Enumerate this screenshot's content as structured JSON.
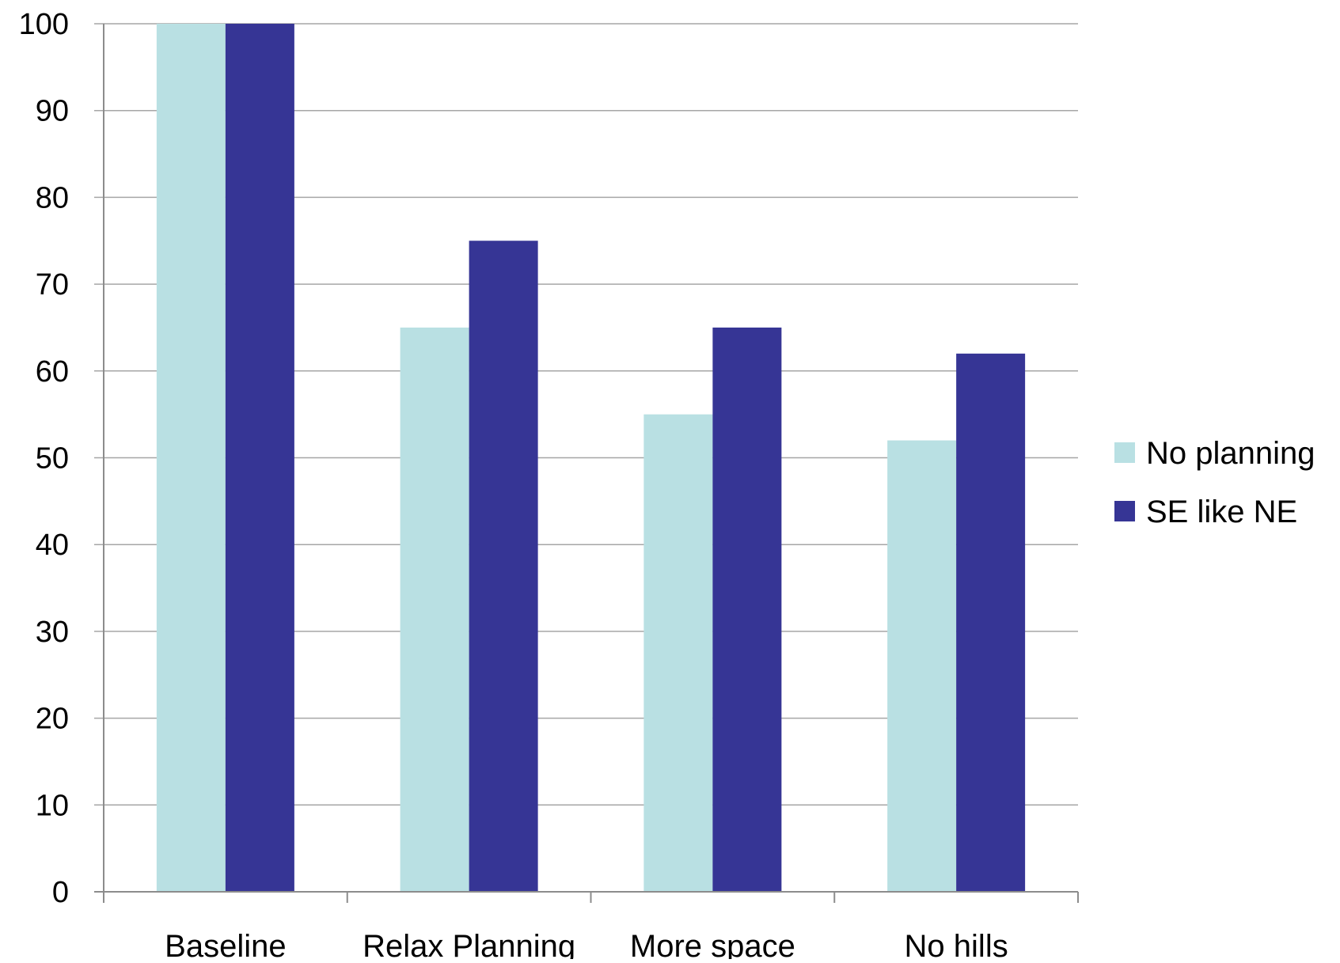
{
  "chart_data": {
    "type": "bar",
    "categories": [
      "Baseline",
      "Relax Planning",
      "More space",
      "No hills"
    ],
    "series": [
      {
        "name": "No planning",
        "values": [
          100,
          65,
          55,
          52
        ],
        "color": "#b9e0e3"
      },
      {
        "name": "SE like NE",
        "values": [
          100,
          75,
          65,
          62
        ],
        "color": "#363595"
      }
    ],
    "title": "",
    "xlabel": "",
    "ylabel": "",
    "ylim": [
      0,
      100
    ],
    "yticks": [
      0,
      10,
      20,
      30,
      40,
      50,
      60,
      70,
      80,
      90,
      100
    ],
    "grid": true,
    "legend_position": "right"
  },
  "colors": {
    "background": "#ffffff",
    "grid": "#a6a6a6",
    "axis": "#8c8c8c"
  }
}
